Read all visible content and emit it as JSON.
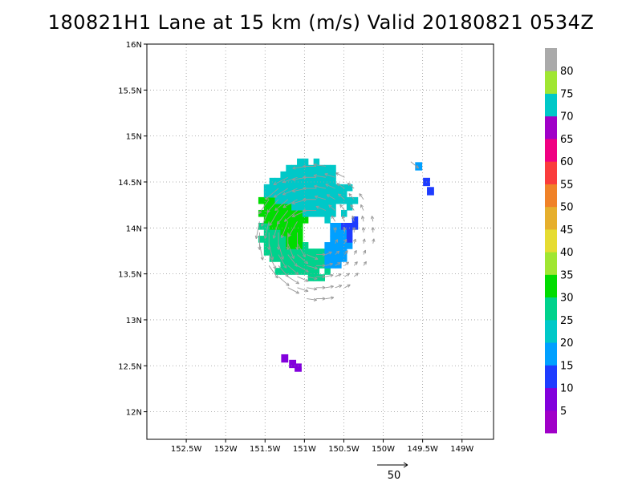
{
  "title": "180821H1 Lane at 15 km (m/s) Valid 20180821 0534Z",
  "map": {
    "lon_range": [
      -153.0,
      -148.6
    ],
    "lat_range": [
      11.7,
      16.0
    ],
    "lon_ticks": [
      {
        "value": -152.5,
        "label": "152.5W"
      },
      {
        "value": -152.0,
        "label": "152W"
      },
      {
        "value": -151.5,
        "label": "151.5W"
      },
      {
        "value": -151.0,
        "label": "151W"
      },
      {
        "value": -150.5,
        "label": "150.5W"
      },
      {
        "value": -150.0,
        "label": "150W"
      },
      {
        "value": -149.5,
        "label": "149.5W"
      },
      {
        "value": -149.0,
        "label": "149W"
      }
    ],
    "lat_ticks": [
      {
        "value": 12.0,
        "label": "12N"
      },
      {
        "value": 12.5,
        "label": "12.5N"
      },
      {
        "value": 13.0,
        "label": "13N"
      },
      {
        "value": 13.5,
        "label": "13.5N"
      },
      {
        "value": 14.0,
        "label": "14N"
      },
      {
        "value": 14.5,
        "label": "14.5N"
      },
      {
        "value": 15.0,
        "label": "15N"
      },
      {
        "value": 15.5,
        "label": "15.5N"
      },
      {
        "value": 16.0,
        "label": "16N"
      }
    ],
    "grid": true,
    "center": {
      "lon": -150.85,
      "lat": 13.95
    },
    "eye_radius_deg": 0.18,
    "outer_radius_deg": 0.78
  },
  "colorbar": {
    "labels": [
      "5",
      "10",
      "15",
      "20",
      "25",
      "30",
      "35",
      "40",
      "45",
      "50",
      "55",
      "60",
      "65",
      "70",
      "75",
      "80"
    ],
    "colors": [
      "#a000c8",
      "#8200dc",
      "#1e3cff",
      "#00a0ff",
      "#00c8c8",
      "#00d28c",
      "#00dc00",
      "#a0e632",
      "#e6dc32",
      "#e6af2d",
      "#f08228",
      "#fa3c3c",
      "#f00082",
      "#a000c8",
      "#00c8c8",
      "#a0e632",
      "#aaaaaa"
    ]
  },
  "reference_vector": {
    "label": "50"
  },
  "wind_regions": [
    {
      "lon": -151.2,
      "lat": 14.45,
      "value": 22
    },
    {
      "lon": -151.0,
      "lat": 14.35,
      "value": 24
    },
    {
      "lon": -150.75,
      "lat": 14.45,
      "value": 20
    },
    {
      "lon": -150.55,
      "lat": 14.35,
      "value": 22
    },
    {
      "lon": -151.2,
      "lat": 13.95,
      "value": 32
    },
    {
      "lon": -151.25,
      "lat": 14.1,
      "value": 33
    },
    {
      "lon": -151.35,
      "lat": 13.85,
      "value": 26
    },
    {
      "lon": -151.0,
      "lat": 13.6,
      "value": 27
    },
    {
      "lon": -150.9,
      "lat": 13.35,
      "value": 26
    },
    {
      "lon": -150.5,
      "lat": 13.75,
      "value": 18
    },
    {
      "lon": -150.3,
      "lat": 13.9,
      "value": 14
    },
    {
      "lon": -150.35,
      "lat": 13.55,
      "value": 13
    },
    {
      "lon": -150.3,
      "lat": 13.3,
      "value": 9
    },
    {
      "lon": -150.5,
      "lat": 13.2,
      "value": 12
    },
    {
      "lon": -150.1,
      "lat": 14.0,
      "value": 20
    },
    {
      "lon": -149.85,
      "lat": 13.95,
      "value": 14
    }
  ],
  "isolated_patches": [
    {
      "lon": -149.55,
      "lat": 14.67,
      "value": 19
    },
    {
      "lon": -149.45,
      "lat": 14.5,
      "value": 14
    },
    {
      "lon": -149.4,
      "lat": 14.4,
      "value": 14
    },
    {
      "lon": -151.25,
      "lat": 12.58,
      "value": 9
    },
    {
      "lon": -151.15,
      "lat": 12.52,
      "value": 8
    },
    {
      "lon": -151.08,
      "lat": 12.48,
      "value": 7
    }
  ]
}
